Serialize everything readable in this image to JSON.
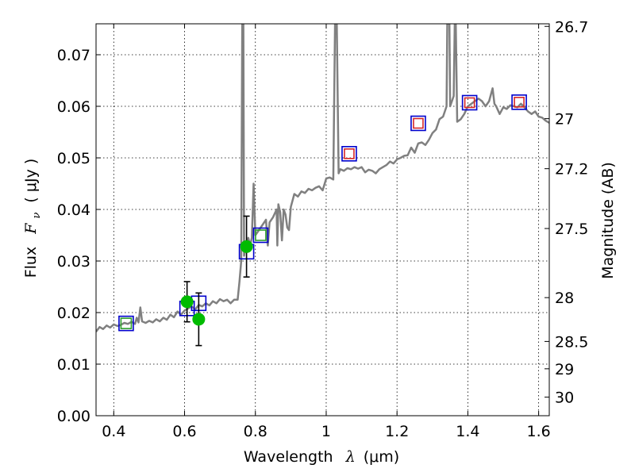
{
  "chart_data": {
    "type": "line",
    "xlabel_text": "Wavelength",
    "xlabel_symbol": "λ",
    "xlabel_unit": "(μm)",
    "ylabel_left_text": "Flux",
    "ylabel_left_symbol": "F",
    "ylabel_left_subscript": "ν",
    "ylabel_left_unit": "( μJy )",
    "ylabel_right": "Magnitude (AB)",
    "xlim": [
      0.35,
      1.63
    ],
    "ylim": [
      0.0,
      0.076
    ],
    "grid": true,
    "x_ticks": [
      0.4,
      0.6,
      0.8,
      1.0,
      1.2,
      1.4,
      1.6
    ],
    "x_tick_labels": [
      "0.4",
      "0.6",
      "0.8",
      "1",
      "1.2",
      "1.4",
      "1.6"
    ],
    "y_ticks": [
      0.0,
      0.01,
      0.02,
      0.03,
      0.04,
      0.05,
      0.06,
      0.07
    ],
    "y_tick_labels": [
      "0.00",
      "0.01",
      "0.02",
      "0.03",
      "0.04",
      "0.05",
      "0.06",
      "0.07"
    ],
    "right_ticks": [
      {
        "label": "26.7",
        "flux": 0.0755
      },
      {
        "label": "27",
        "flux": 0.0576
      },
      {
        "label": "27.2",
        "flux": 0.0479
      },
      {
        "label": "27.5",
        "flux": 0.0363
      },
      {
        "label": "28",
        "flux": 0.0229
      },
      {
        "label": "28.5",
        "flux": 0.0144
      },
      {
        "label": "29",
        "flux": 0.0091
      },
      {
        "label": "30",
        "flux": 0.0036
      }
    ],
    "series": [
      {
        "kind": "model_spectrum",
        "color": "#808080",
        "points": [
          [
            0.35,
            0.0163
          ],
          [
            0.36,
            0.0172
          ],
          [
            0.37,
            0.0168
          ],
          [
            0.38,
            0.0175
          ],
          [
            0.39,
            0.0171
          ],
          [
            0.4,
            0.0177
          ],
          [
            0.41,
            0.0174
          ],
          [
            0.42,
            0.0176
          ],
          [
            0.43,
            0.018
          ],
          [
            0.44,
            0.0178
          ],
          [
            0.45,
            0.0182
          ],
          [
            0.46,
            0.0178
          ],
          [
            0.465,
            0.019
          ],
          [
            0.47,
            0.0181
          ],
          [
            0.475,
            0.021
          ],
          [
            0.48,
            0.0183
          ],
          [
            0.49,
            0.018
          ],
          [
            0.5,
            0.0184
          ],
          [
            0.51,
            0.0181
          ],
          [
            0.52,
            0.0187
          ],
          [
            0.53,
            0.0183
          ],
          [
            0.54,
            0.019
          ],
          [
            0.55,
            0.0186
          ],
          [
            0.56,
            0.0196
          ],
          [
            0.57,
            0.0191
          ],
          [
            0.58,
            0.0202
          ],
          [
            0.59,
            0.0196
          ],
          [
            0.6,
            0.0204
          ],
          [
            0.61,
            0.0208
          ],
          [
            0.62,
            0.0212
          ],
          [
            0.63,
            0.0206
          ],
          [
            0.64,
            0.0215
          ],
          [
            0.65,
            0.0212
          ],
          [
            0.66,
            0.0218
          ],
          [
            0.67,
            0.0214
          ],
          [
            0.68,
            0.0222
          ],
          [
            0.69,
            0.0218
          ],
          [
            0.7,
            0.0226
          ],
          [
            0.71,
            0.0222
          ],
          [
            0.72,
            0.0225
          ],
          [
            0.73,
            0.0218
          ],
          [
            0.74,
            0.0225
          ],
          [
            0.75,
            0.0225
          ],
          [
            0.755,
            0.026
          ],
          [
            0.76,
            0.03
          ],
          [
            0.763,
            0.076
          ],
          [
            0.766,
            0.076
          ],
          [
            0.768,
            0.031
          ],
          [
            0.77,
            0.032
          ],
          [
            0.78,
            0.0345
          ],
          [
            0.785,
            0.033
          ],
          [
            0.79,
            0.0345
          ],
          [
            0.795,
            0.045
          ],
          [
            0.8,
            0.035
          ],
          [
            0.81,
            0.036
          ],
          [
            0.82,
            0.037
          ],
          [
            0.83,
            0.038
          ],
          [
            0.835,
            0.033
          ],
          [
            0.84,
            0.0375
          ],
          [
            0.85,
            0.0385
          ],
          [
            0.86,
            0.04
          ],
          [
            0.862,
            0.033
          ],
          [
            0.865,
            0.041
          ],
          [
            0.87,
            0.0395
          ],
          [
            0.875,
            0.034
          ],
          [
            0.88,
            0.04
          ],
          [
            0.885,
            0.039
          ],
          [
            0.89,
            0.0365
          ],
          [
            0.895,
            0.036
          ],
          [
            0.9,
            0.0405
          ],
          [
            0.91,
            0.043
          ],
          [
            0.92,
            0.0425
          ],
          [
            0.93,
            0.0435
          ],
          [
            0.94,
            0.0432
          ],
          [
            0.95,
            0.044
          ],
          [
            0.96,
            0.0437
          ],
          [
            0.97,
            0.0442
          ],
          [
            0.98,
            0.0445
          ],
          [
            0.99,
            0.0437
          ],
          [
            1.0,
            0.046
          ],
          [
            1.01,
            0.0462
          ],
          [
            1.02,
            0.0458
          ],
          [
            1.025,
            0.076
          ],
          [
            1.03,
            0.076
          ],
          [
            1.035,
            0.047
          ],
          [
            1.04,
            0.0478
          ],
          [
            1.05,
            0.0475
          ],
          [
            1.06,
            0.048
          ],
          [
            1.07,
            0.0478
          ],
          [
            1.08,
            0.0482
          ],
          [
            1.09,
            0.0479
          ],
          [
            1.1,
            0.0482
          ],
          [
            1.11,
            0.0472
          ],
          [
            1.12,
            0.0477
          ],
          [
            1.13,
            0.0475
          ],
          [
            1.14,
            0.047
          ],
          [
            1.15,
            0.0478
          ],
          [
            1.16,
            0.0482
          ],
          [
            1.17,
            0.0486
          ],
          [
            1.18,
            0.0493
          ],
          [
            1.19,
            0.0489
          ],
          [
            1.2,
            0.0497
          ],
          [
            1.21,
            0.05
          ],
          [
            1.22,
            0.0504
          ],
          [
            1.23,
            0.0505
          ],
          [
            1.24,
            0.052
          ],
          [
            1.25,
            0.051
          ],
          [
            1.26,
            0.0528
          ],
          [
            1.27,
            0.053
          ],
          [
            1.28,
            0.0525
          ],
          [
            1.29,
            0.0535
          ],
          [
            1.3,
            0.0548
          ],
          [
            1.31,
            0.0555
          ],
          [
            1.32,
            0.0575
          ],
          [
            1.33,
            0.058
          ],
          [
            1.34,
            0.06
          ],
          [
            1.342,
            0.076
          ],
          [
            1.348,
            0.076
          ],
          [
            1.35,
            0.06
          ],
          [
            1.36,
            0.062
          ],
          [
            1.363,
            0.076
          ],
          [
            1.366,
            0.076
          ],
          [
            1.37,
            0.057
          ],
          [
            1.38,
            0.0575
          ],
          [
            1.39,
            0.0585
          ],
          [
            1.4,
            0.06
          ],
          [
            1.41,
            0.0605
          ],
          [
            1.42,
            0.061
          ],
          [
            1.43,
            0.0615
          ],
          [
            1.44,
            0.061
          ],
          [
            1.45,
            0.06
          ],
          [
            1.46,
            0.061
          ],
          [
            1.47,
            0.0635
          ],
          [
            1.475,
            0.0605
          ],
          [
            1.48,
            0.06
          ],
          [
            1.49,
            0.0585
          ],
          [
            1.5,
            0.0598
          ],
          [
            1.51,
            0.0595
          ],
          [
            1.52,
            0.0602
          ],
          [
            1.53,
            0.06
          ],
          [
            1.54,
            0.0598
          ],
          [
            1.55,
            0.0605
          ],
          [
            1.56,
            0.0598
          ],
          [
            1.57,
            0.059
          ],
          [
            1.58,
            0.0585
          ],
          [
            1.59,
            0.059
          ],
          [
            1.6,
            0.058
          ],
          [
            1.61,
            0.0578
          ],
          [
            1.62,
            0.0572
          ],
          [
            1.63,
            0.0568
          ]
        ]
      },
      {
        "kind": "model_photometry",
        "edge_color": "#0000cc",
        "marker": "square",
        "points": [
          [
            0.435,
            0.0179
          ],
          [
            0.607,
            0.0208
          ],
          [
            0.64,
            0.0218
          ],
          [
            0.775,
            0.0318
          ],
          [
            0.815,
            0.035
          ],
          [
            1.065,
            0.0508
          ],
          [
            1.26,
            0.0567
          ],
          [
            1.405,
            0.0607
          ],
          [
            1.545,
            0.0608
          ]
        ]
      },
      {
        "kind": "observed_upper_limits",
        "edge_color": "#d62728",
        "marker": "square",
        "points": [
          [
            1.065,
            0.0508
          ],
          [
            1.26,
            0.0567
          ],
          [
            1.405,
            0.0607
          ],
          [
            1.545,
            0.0608
          ]
        ]
      },
      {
        "kind": "observed_ghost_boxes",
        "edge_color": "#2ca02c",
        "marker": "square",
        "points": [
          [
            0.435,
            0.0179
          ],
          [
            0.815,
            0.035
          ]
        ]
      },
      {
        "kind": "observed_detections",
        "color": "#00bb00",
        "marker": "circle",
        "points": [
          {
            "x": 0.607,
            "y": 0.0221,
            "err": 0.0039
          },
          {
            "x": 0.64,
            "y": 0.0187,
            "err": 0.0051
          },
          {
            "x": 0.775,
            "y": 0.0328,
            "err": 0.0059
          }
        ]
      }
    ]
  }
}
